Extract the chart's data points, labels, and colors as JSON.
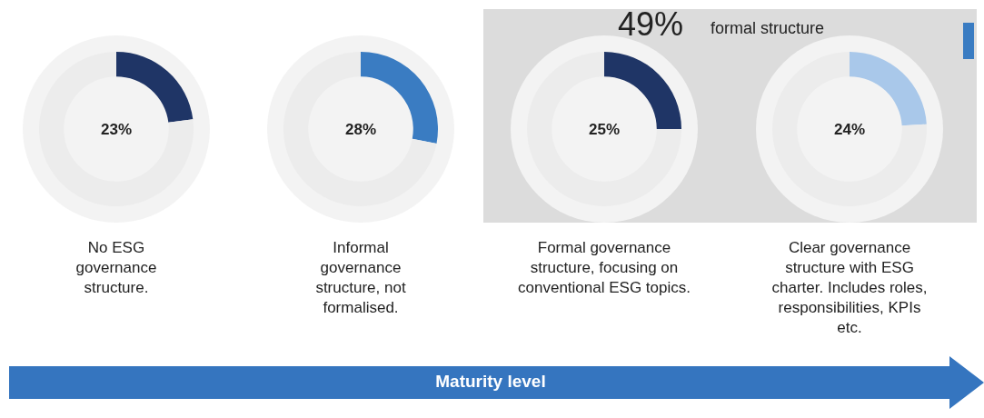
{
  "chart_data": [
    {
      "type": "donut",
      "title": "No ESG governance structure.",
      "categories": [
        null,
        null
      ],
      "values": [
        23,
        77
      ],
      "colors": [
        "#1f3566",
        "#ececec"
      ],
      "annotations": [
        "23%"
      ]
    },
    {
      "type": "donut",
      "title": "Informal governance structure, not formalised.",
      "categories": [
        null,
        null
      ],
      "values": [
        28,
        72
      ],
      "colors": [
        "#3a7cc2",
        "#ececec"
      ],
      "annotations": [
        "28%"
      ]
    },
    {
      "type": "donut",
      "title": "Formal governance structure, focusing on conventional ESG topics.",
      "categories": [
        null,
        null
      ],
      "values": [
        25,
        75
      ],
      "colors": [
        "#1f3566",
        "#ececec"
      ],
      "annotations": [
        "25%"
      ]
    },
    {
      "type": "donut",
      "title": "Clear governance structure with ESG charter. Includes roles, responsibilities, KPIs etc.",
      "categories": [
        null,
        null
      ],
      "values": [
        24,
        76
      ],
      "colors": [
        "#a9c8ea",
        "#ececec"
      ],
      "annotations": [
        "24%"
      ]
    },
    {
      "type": "other",
      "annotations": [
        "49%",
        "formal structure",
        "Maturity level"
      ]
    }
  ]
}
